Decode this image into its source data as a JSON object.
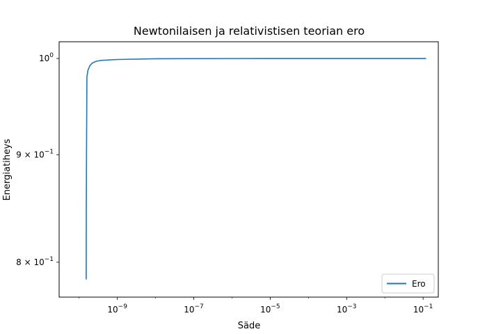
{
  "chart_data": {
    "type": "line",
    "title": "Newtonilaisen ja relativistisen teorian ero",
    "xlabel": "Säde",
    "ylabel": "Energiatiheys",
    "xscale": "log",
    "yscale": "log",
    "xlim": [
      3e-11,
      0.25
    ],
    "ylim": [
      0.77,
      1.0185
    ],
    "grid": false,
    "legend_position": "lower right",
    "x_ticks": [
      {
        "value": 1e-09,
        "base": "10",
        "exp": "−9"
      },
      {
        "value": 1e-07,
        "base": "10",
        "exp": "−7"
      },
      {
        "value": 1e-05,
        "base": "10",
        "exp": "−5"
      },
      {
        "value": 0.001,
        "base": "10",
        "exp": "−3"
      },
      {
        "value": 0.1,
        "base": "10",
        "exp": "−1"
      }
    ],
    "y_ticks": [
      {
        "value": 0.8,
        "mantissa": "8 × 10",
        "exp": "−1"
      },
      {
        "value": 0.9,
        "mantissa": "9 × 10",
        "exp": "−1"
      },
      {
        "value": 1.0,
        "mantissa": "10",
        "exp": "0"
      }
    ],
    "series": [
      {
        "name": "Ero",
        "color": "#1f77b4",
        "x": [
          1.53e-10,
          1.54e-10,
          1.56e-10,
          1.6e-10,
          1.7e-10,
          1.9e-10,
          2.2e-10,
          2.8e-10,
          4e-10,
          1e-09,
          1e-08,
          1e-06,
          0.0001,
          0.01,
          0.12
        ],
        "y": [
          0.785,
          0.85,
          0.9,
          0.98,
          0.987,
          0.992,
          0.995,
          0.997,
          0.998,
          0.9989,
          0.9997,
          0.99995,
          0.99999,
          1.0,
          1.0
        ]
      }
    ]
  }
}
